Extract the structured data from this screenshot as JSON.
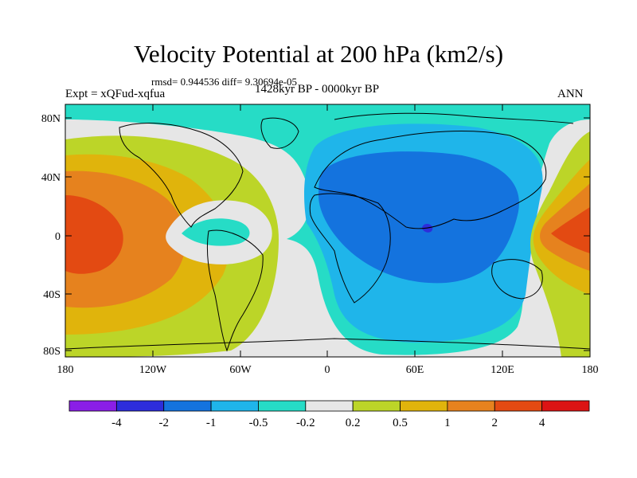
{
  "title": "Velocity Potential at 200 hPa (km2/s)",
  "stats_line": "rmsd= 0.944536  diff= 9.30694e-05",
  "left_label": "Expt = xQFud-xqfua",
  "center_label": "1428kyr BP - 0000kyr BP",
  "right_label": "ANN",
  "axes": {
    "y_ticks": [
      "80N",
      "40N",
      "0",
      "40S",
      "80S"
    ],
    "x_ticks": [
      "180",
      "120W",
      "60W",
      "0",
      "60E",
      "120E",
      "180"
    ]
  },
  "colorbar": {
    "labels": [
      "-4",
      "-2",
      "-1",
      "-0.5",
      "-0.2",
      "0.2",
      "0.5",
      "1",
      "2",
      "4"
    ],
    "colors": [
      "#8a1ee6",
      "#2d2ddb",
      "#1473de",
      "#1fb5ea",
      "#26dcc6",
      "#e6e6e6",
      "#bcd528",
      "#e0b40c",
      "#e6821e",
      "#e34a12",
      "#dc1414"
    ]
  },
  "palette": {
    "ocean_bg": "#e6e6e6",
    "coast": "#000000"
  }
}
